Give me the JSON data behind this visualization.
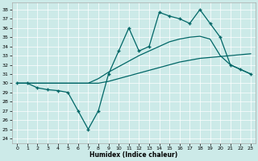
{
  "xlabel": "Humidex (Indice chaleur)",
  "bg_color": "#cceae8",
  "line_color": "#006666",
  "xlim": [
    -0.5,
    23.5
  ],
  "ylim": [
    23.5,
    38.8
  ],
  "yticks": [
    24,
    25,
    26,
    27,
    28,
    29,
    30,
    31,
    32,
    33,
    34,
    35,
    36,
    37,
    38
  ],
  "xticks": [
    0,
    1,
    2,
    3,
    4,
    5,
    6,
    7,
    8,
    9,
    10,
    11,
    12,
    13,
    14,
    15,
    16,
    17,
    18,
    19,
    20,
    21,
    22,
    23
  ],
  "line1_x": [
    0,
    1,
    2,
    3,
    4,
    5,
    6,
    7,
    8,
    9,
    10,
    11,
    12,
    13,
    14,
    15,
    16,
    17,
    18,
    19,
    20,
    21,
    22,
    23
  ],
  "line1_y": [
    30.0,
    30.0,
    29.5,
    29.3,
    29.2,
    29.0,
    27.0,
    25.0,
    27.0,
    31.0,
    33.5,
    36.0,
    33.5,
    34.0,
    37.7,
    37.3,
    37.0,
    36.5,
    38.0,
    36.5,
    35.0,
    32.0,
    31.5,
    31.0
  ],
  "line2_x": [
    0,
    1,
    2,
    3,
    4,
    5,
    6,
    7,
    8,
    9,
    10,
    11,
    12,
    13,
    14,
    15,
    16,
    17,
    18,
    19,
    20,
    21,
    22,
    23
  ],
  "line2_y": [
    30.0,
    30.0,
    30.0,
    30.0,
    30.0,
    30.0,
    30.0,
    30.0,
    30.0,
    30.2,
    30.5,
    30.8,
    31.1,
    31.4,
    31.7,
    32.0,
    32.3,
    32.5,
    32.7,
    32.8,
    32.9,
    33.0,
    33.1,
    33.2
  ],
  "line3_x": [
    0,
    1,
    2,
    3,
    4,
    5,
    6,
    7,
    8,
    9,
    10,
    11,
    12,
    13,
    14,
    15,
    16,
    17,
    18,
    19,
    20,
    21,
    22,
    23
  ],
  "line3_y": [
    30.0,
    30.0,
    30.0,
    30.0,
    30.0,
    30.0,
    30.0,
    30.0,
    30.5,
    31.2,
    31.8,
    32.4,
    33.0,
    33.5,
    34.0,
    34.5,
    34.8,
    35.0,
    35.1,
    34.8,
    33.0,
    32.0,
    31.5,
    31.0
  ]
}
